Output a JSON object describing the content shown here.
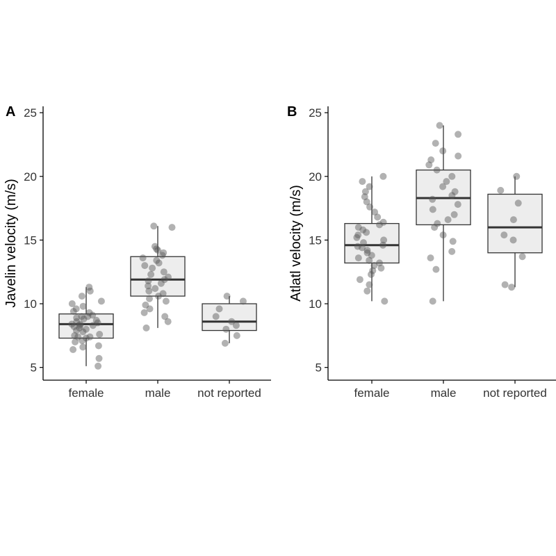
{
  "colors": {
    "box_fill": "#ededed",
    "box_stroke": "#333333",
    "point_fill": "#555555",
    "axis": "#000000"
  },
  "chart_data": [
    {
      "type": "box",
      "panel_label": "A",
      "title": "",
      "xlabel": "",
      "ylabel": "Javelin velocity (m/s)",
      "ylim": [
        4,
        25.5
      ],
      "yticks": [
        5,
        10,
        15,
        20,
        25
      ],
      "ytick_labels": [
        "5",
        "10",
        "15",
        "20",
        "25"
      ],
      "categories": [
        "female",
        "male",
        "not reported"
      ],
      "grid": false,
      "boxes": [
        {
          "category": "female",
          "min": 5.1,
          "q1": 7.3,
          "median": 8.4,
          "q3": 9.2,
          "max": 11.3
        },
        {
          "category": "male",
          "min": 8.1,
          "q1": 10.6,
          "median": 11.9,
          "q3": 13.7,
          "max": 16.1
        },
        {
          "category": "not reported",
          "min": 6.9,
          "q1": 7.9,
          "median": 8.6,
          "q3": 10.0,
          "max": 10.6
        }
      ],
      "points": [
        [
          5.1,
          5.7,
          6.4,
          6.6,
          6.7,
          7.0,
          7.1,
          7.3,
          7.4,
          7.4,
          7.5,
          7.6,
          7.8,
          7.9,
          8.0,
          8.1,
          8.2,
          8.3,
          8.3,
          8.4,
          8.4,
          8.5,
          8.6,
          8.7,
          8.8,
          8.9,
          9.0,
          9.0,
          9.1,
          9.3,
          9.4,
          9.6,
          9.8,
          10.0,
          10.2,
          10.6,
          11.0,
          11.3
        ],
        [
          8.1,
          8.6,
          9.0,
          9.3,
          9.6,
          9.9,
          10.2,
          10.4,
          10.6,
          10.8,
          11.0,
          11.2,
          11.4,
          11.6,
          11.8,
          11.9,
          12.1,
          12.3,
          12.5,
          12.8,
          13.0,
          13.2,
          13.4,
          13.6,
          13.8,
          14.0,
          14.2,
          14.3,
          14.5,
          16.0,
          16.1
        ],
        [
          6.9,
          7.5,
          8.0,
          8.3,
          8.6,
          9.0,
          9.6,
          10.2,
          10.6
        ]
      ]
    },
    {
      "type": "box",
      "panel_label": "B",
      "title": "",
      "xlabel": "",
      "ylabel": "Atlatl velocity (m/s)",
      "ylim": [
        4,
        25.5
      ],
      "yticks": [
        5,
        10,
        15,
        20,
        25
      ],
      "ytick_labels": [
        "5",
        "10",
        "15",
        "20",
        "25"
      ],
      "categories": [
        "female",
        "male",
        "not reported"
      ],
      "grid": false,
      "boxes": [
        {
          "category": "female",
          "min": 10.2,
          "q1": 13.2,
          "median": 14.6,
          "q3": 16.3,
          "max": 20.0
        },
        {
          "category": "male",
          "min": 10.2,
          "q1": 16.2,
          "median": 18.3,
          "q3": 20.5,
          "max": 24.0
        },
        {
          "category": "not reported",
          "min": 11.3,
          "q1": 14.0,
          "median": 16.0,
          "q3": 18.6,
          "max": 20.0
        }
      ],
      "points": [
        [
          10.2,
          11.0,
          11.5,
          11.9,
          12.3,
          12.6,
          12.8,
          13.0,
          13.2,
          13.4,
          13.6,
          13.8,
          14.0,
          14.2,
          14.4,
          14.5,
          14.6,
          14.8,
          15.0,
          15.2,
          15.4,
          15.6,
          15.8,
          16.0,
          16.2,
          16.4,
          16.8,
          17.2,
          17.6,
          18.0,
          18.4,
          18.8,
          19.2,
          19.6,
          20.0
        ],
        [
          10.2,
          12.7,
          13.6,
          14.1,
          14.9,
          15.4,
          16.0,
          16.3,
          16.6,
          17.0,
          17.4,
          17.8,
          18.2,
          18.5,
          18.8,
          19.2,
          19.6,
          20.0,
          20.5,
          20.9,
          21.3,
          21.6,
          22.0,
          22.6,
          23.3,
          24.0
        ],
        [
          11.3,
          11.5,
          13.7,
          15.0,
          15.4,
          16.6,
          17.9,
          18.9,
          20.0
        ]
      ]
    }
  ]
}
